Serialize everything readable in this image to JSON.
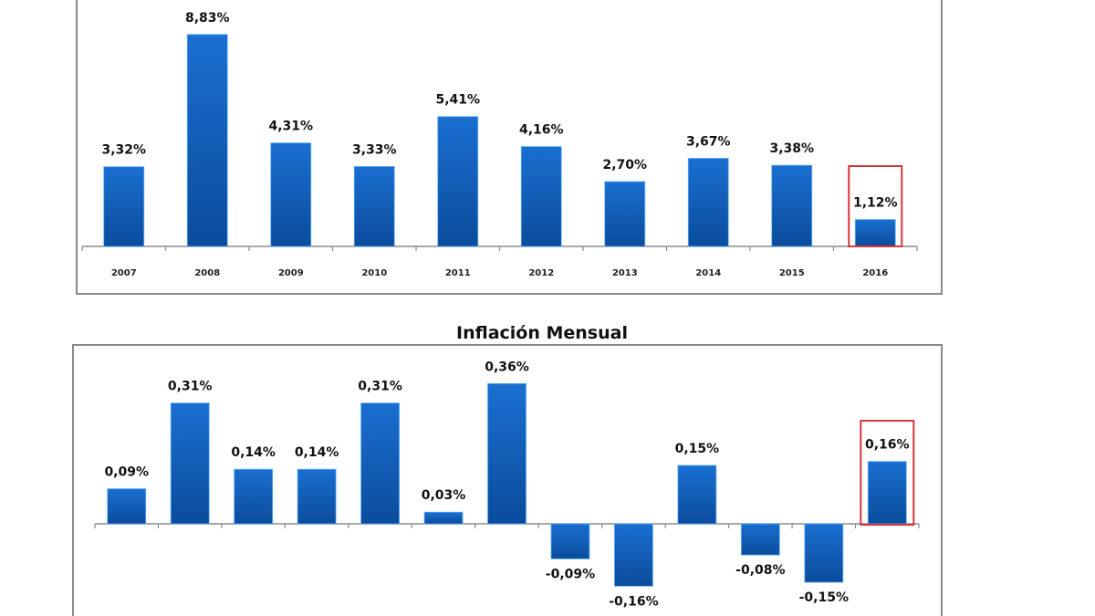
{
  "chart_data": [
    {
      "type": "bar",
      "title": "",
      "xlabel": "",
      "ylabel": "",
      "categories": [
        "2007",
        "2008",
        "2009",
        "2010",
        "2011",
        "2012",
        "2013",
        "2014",
        "2015",
        "2016"
      ],
      "values": [
        3.32,
        8.83,
        4.31,
        3.33,
        5.41,
        4.16,
        2.7,
        3.67,
        3.38,
        1.12
      ],
      "data_labels": [
        "3,32%",
        "8,83%",
        "4,31%",
        "3,33%",
        "5,41%",
        "4,16%",
        "2,70%",
        "3,67%",
        "3,38%",
        "1,12%"
      ],
      "highlighted_index": 9,
      "ylim": [
        0,
        9
      ],
      "grid": false,
      "legend": "none"
    },
    {
      "type": "bar",
      "title": "Inflación Mensual",
      "xlabel": "",
      "ylabel": "",
      "categories": [],
      "values": [
        0.09,
        0.31,
        0.14,
        0.14,
        0.31,
        0.03,
        0.36,
        -0.09,
        -0.16,
        0.15,
        -0.08,
        -0.15,
        0.16
      ],
      "data_labels": [
        "0,09%",
        "0,31%",
        "0,14%",
        "0,14%",
        "0,31%",
        "0,03%",
        "0,36%",
        "-0,09%",
        "-0,16%",
        "0,15%",
        "-0,08%",
        "-0,15%",
        "0,16%"
      ],
      "highlighted_index": 12,
      "ylim": [
        -0.2,
        0.4
      ],
      "grid": false,
      "legend": "none"
    }
  ],
  "colors": {
    "bar_top": "#1a6fd0",
    "bar_bottom": "#0b4c9c",
    "highlight_box": "#d9343b",
    "frame": "#8a8a8a",
    "axis": "#8c8c8c"
  }
}
